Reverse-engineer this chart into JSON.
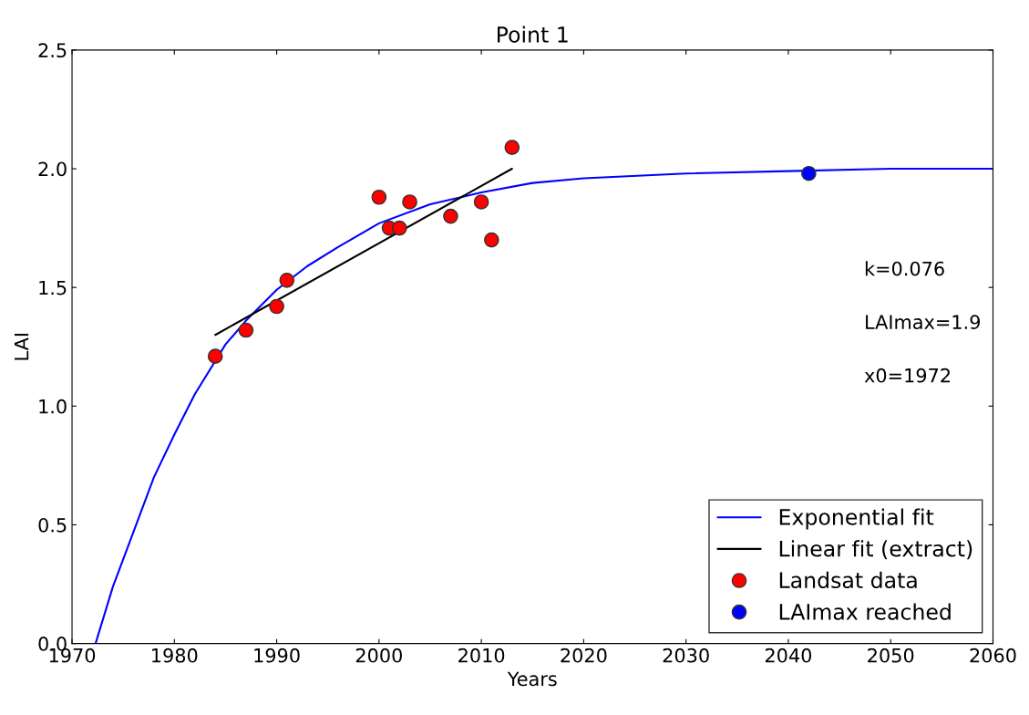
{
  "chart_data": {
    "type": "scatter",
    "title": "Point 1",
    "xlabel": "Years",
    "ylabel": "LAI",
    "xlim": [
      1970,
      2060
    ],
    "ylim": [
      0,
      2.5
    ],
    "xticks": [
      1970,
      1980,
      1990,
      2000,
      2010,
      2020,
      2030,
      2040,
      2050,
      2060
    ],
    "yticks": [
      {
        "value": 0,
        "label": "0.0"
      },
      {
        "value": 0.5,
        "label": "0.5"
      },
      {
        "value": 1,
        "label": "1.0"
      },
      {
        "value": 1.5,
        "label": "1.5"
      },
      {
        "value": 2,
        "label": "2.0"
      },
      {
        "value": 2.5,
        "label": "2.5"
      }
    ],
    "grid": false,
    "legend": "bottom right",
    "series": [
      {
        "name": "Exponential fit",
        "type": "line",
        "color": "#0000ff",
        "marker": "none",
        "x": [
          1972.3,
          1974,
          1976,
          1978,
          1980,
          1982,
          1985,
          1987,
          1990,
          1993,
          1996,
          2000,
          2005,
          2010,
          2015,
          2020,
          2030,
          2040,
          2050,
          2060
        ],
        "values": [
          0,
          0.24,
          0.47,
          0.7,
          0.88,
          1.05,
          1.26,
          1.36,
          1.49,
          1.59,
          1.67,
          1.77,
          1.85,
          1.9,
          1.94,
          1.96,
          1.98,
          1.99,
          2.0,
          2.0
        ]
      },
      {
        "name": "Linear fit (extract)",
        "type": "line",
        "color": "#000000",
        "marker": "none",
        "x": [
          1984,
          2013
        ],
        "values": [
          1.3,
          2.0
        ]
      },
      {
        "name": "Landsat data",
        "color": "#ff0000",
        "marker": "circle",
        "x": [
          1984,
          1987,
          1990,
          1991,
          2000,
          2001,
          2002,
          2003,
          2007,
          2010,
          2011,
          2013
        ],
        "values": [
          1.21,
          1.32,
          1.42,
          1.53,
          1.88,
          1.75,
          1.75,
          1.86,
          1.8,
          1.86,
          1.7,
          2.09
        ]
      },
      {
        "name": "LAImax reached",
        "color": "#0000ff",
        "marker": "circle",
        "x": [
          2042
        ],
        "values": [
          1.98
        ]
      }
    ],
    "annotations": [
      {
        "text": "k=0.076"
      },
      {
        "text": "LAImax=1.9"
      },
      {
        "text": "x0=1972"
      }
    ]
  }
}
